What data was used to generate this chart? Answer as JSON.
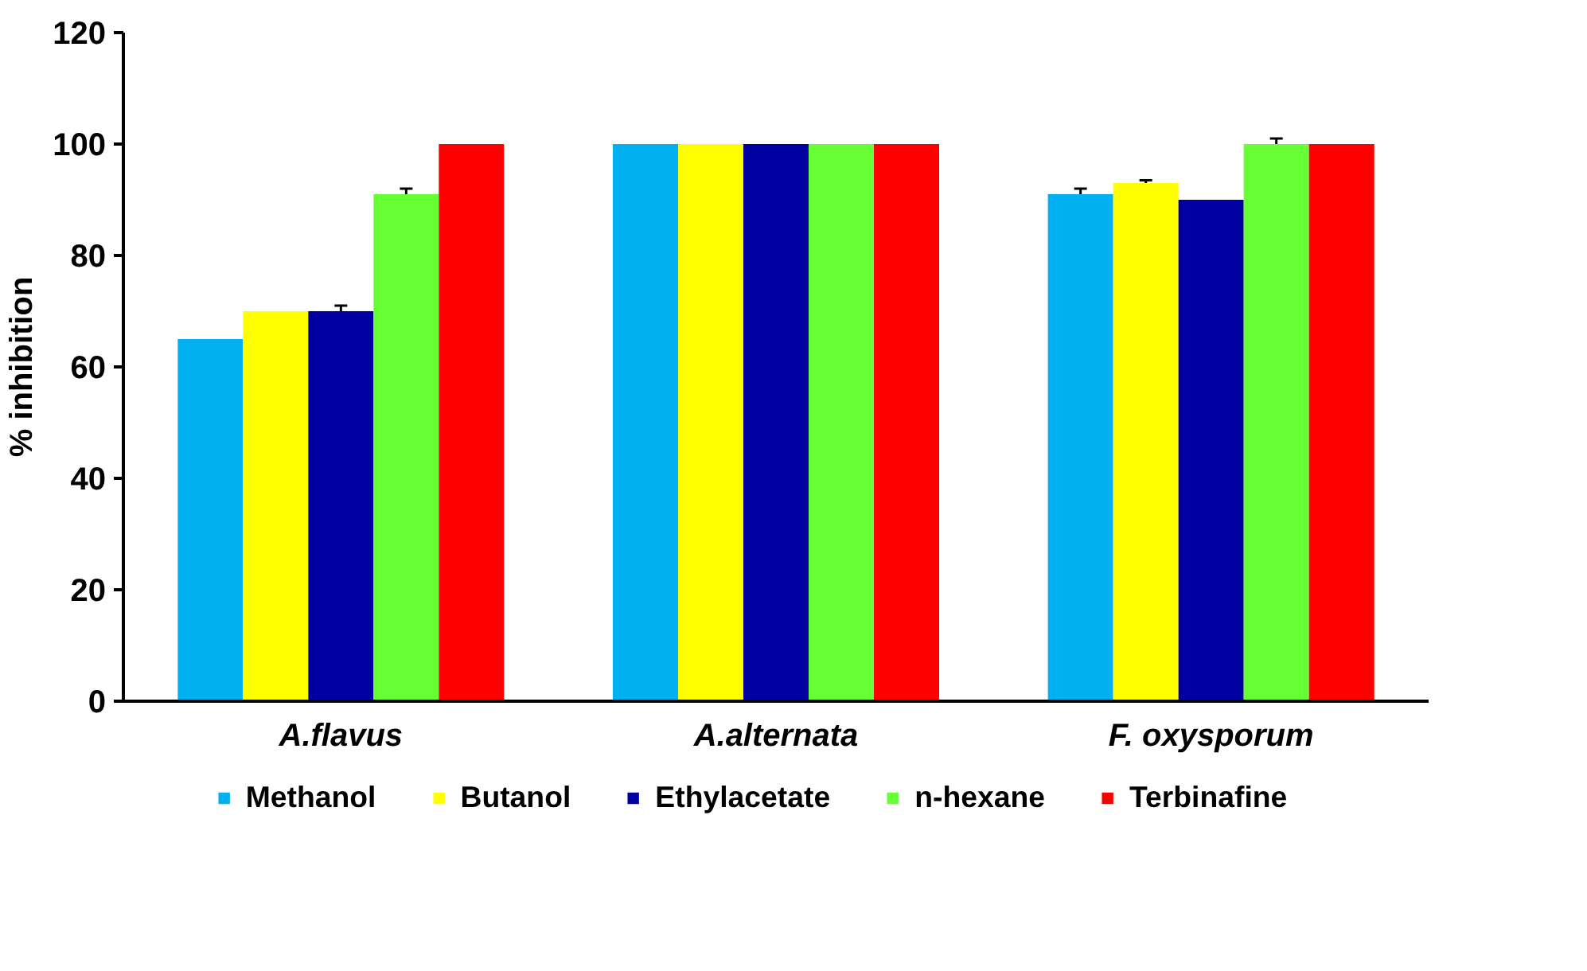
{
  "chart_data": {
    "type": "bar",
    "ylabel": "% inhibition",
    "categories": [
      "A.flavus",
      "A.alternata",
      "F. oxysporum"
    ],
    "series": [
      {
        "name": "Methanol",
        "color": "#00b0f0",
        "values": [
          65,
          100,
          91
        ],
        "errors": [
          null,
          null,
          1
        ]
      },
      {
        "name": "Butanol",
        "color": "#ffff00",
        "values": [
          70,
          100,
          93
        ],
        "errors": [
          null,
          null,
          0.5
        ]
      },
      {
        "name": "Ethylacetate",
        "color": "#0000a0",
        "values": [
          70,
          100,
          90
        ],
        "errors": [
          1,
          null,
          null
        ]
      },
      {
        "name": "n-hexane",
        "color": "#66ff33",
        "values": [
          91,
          100,
          100
        ],
        "errors": [
          1,
          null,
          1
        ]
      },
      {
        "name": "Terbinafine",
        "color": "#ff0000",
        "values": [
          100,
          100,
          100
        ],
        "errors": [
          null,
          null,
          null
        ]
      }
    ],
    "ylim": [
      0,
      120
    ],
    "yticks": [
      0,
      20,
      40,
      60,
      80,
      100,
      120
    ],
    "grid": false,
    "legend": "bottom"
  }
}
